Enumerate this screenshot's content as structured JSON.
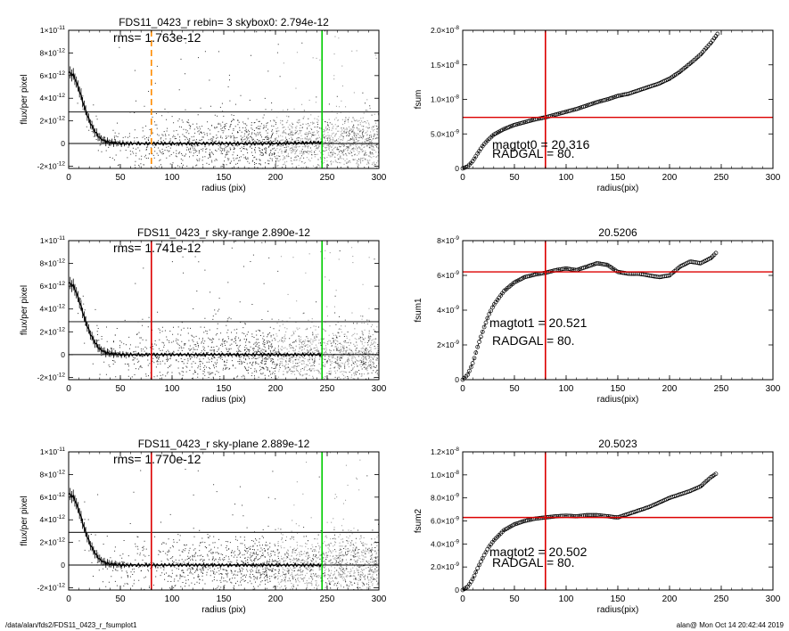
{
  "footer": {
    "path": "/data/alan/fds2/FDS11_0423_r_fsumplot1",
    "stamp": "alan@  Mon Oct 14 20:42:44 2019"
  },
  "chart_data": [
    {
      "id": "p1",
      "type": "scatter",
      "title": "FDS11_0423_r rebin= 3    skybox0:  2.794e-12",
      "xlabel": "radius (pix)",
      "ylabel": "flux/per pixel",
      "xlim": [
        0,
        300
      ],
      "ylim": [
        -2.2e-12,
        1e-11
      ],
      "xticks": [
        0,
        50,
        100,
        150,
        200,
        250,
        300
      ],
      "xticklabels": [
        "0",
        "50",
        "100",
        "150",
        "200",
        "250",
        "300"
      ],
      "yticks": [
        -2e-12,
        0,
        2e-12,
        4e-12,
        6e-12,
        8e-12,
        1e-11
      ],
      "yticklabels": [
        [
          "-2×10",
          "-12"
        ],
        [
          "0",
          ""
        ],
        [
          "2×10",
          "-12"
        ],
        [
          "4×10",
          "-12"
        ],
        [
          "6×10",
          "-12"
        ],
        [
          "8×10",
          "-12"
        ],
        [
          "1×10",
          "-11"
        ]
      ],
      "annotation": "rms= 1.763e-12",
      "hline": 2.794e-12,
      "zeroline": 0,
      "vlines": [
        {
          "x": 80,
          "color": "#ff8c00",
          "style": "dashed"
        },
        {
          "x": 245,
          "color": "#00cc00",
          "style": "solid"
        }
      ],
      "scatter_points": 2000,
      "profile": {
        "x": [
          0,
          5,
          10,
          15,
          20,
          25,
          30,
          35,
          40,
          45,
          50,
          60,
          80,
          100,
          150,
          200,
          245
        ],
        "y": [
          6.3e-12,
          6e-12,
          4.8e-12,
          3.3e-12,
          2e-12,
          1.1e-12,
          5e-13,
          2e-13,
          1e-13,
          5e-14,
          0.0,
          0.0,
          0.0,
          0.0,
          0.0,
          0.0,
          1e-13
        ]
      }
    },
    {
      "id": "p2",
      "type": "line",
      "title": "",
      "xlabel": "radius(pix)",
      "ylabel": "fsum",
      "xlim": [
        0,
        300
      ],
      "ylim": [
        0,
        2e-08
      ],
      "xticks": [
        0,
        50,
        100,
        150,
        200,
        250,
        300
      ],
      "xticklabels": [
        "0",
        "50",
        "100",
        "150",
        "200",
        "250",
        "300"
      ],
      "yticks": [
        0,
        5e-09,
        1e-08,
        1.5e-08,
        2e-08
      ],
      "yticklabels": [
        [
          "0",
          ""
        ],
        [
          "5.0×10",
          "-9"
        ],
        [
          "1.0×10",
          "-8"
        ],
        [
          "1.5×10",
          "-8"
        ],
        [
          "2.0×10",
          "-8"
        ]
      ],
      "annotation_lines": [
        "magtot0 =  20.316",
        "RADGAL =      80."
      ],
      "vline": 80,
      "hline": 7.4e-09,
      "series": {
        "x": [
          0,
          5,
          10,
          15,
          20,
          25,
          30,
          40,
          50,
          60,
          70,
          80,
          90,
          100,
          110,
          120,
          130,
          140,
          150,
          160,
          170,
          180,
          190,
          200,
          210,
          220,
          230,
          240,
          247
        ],
        "y": [
          0,
          3e-10,
          1.1e-09,
          2.3e-09,
          3.4e-09,
          4.2e-09,
          4.9e-09,
          5.7e-09,
          6.3e-09,
          6.7e-09,
          7.1e-09,
          7.4e-09,
          7.8e-09,
          8.2e-09,
          8.6e-09,
          9.1e-09,
          9.6e-09,
          1e-08,
          1.05e-08,
          1.08e-08,
          1.13e-08,
          1.18e-08,
          1.23e-08,
          1.3e-08,
          1.4e-08,
          1.52e-08,
          1.65e-08,
          1.82e-08,
          1.96e-08
        ]
      }
    },
    {
      "id": "p3",
      "type": "scatter",
      "title": "FDS11_0423_r sky-range  2.890e-12",
      "xlabel": "radius (pix)",
      "ylabel": "flux/per pixel",
      "xlim": [
        0,
        300
      ],
      "ylim": [
        -2.2e-12,
        1e-11
      ],
      "xticks": [
        0,
        50,
        100,
        150,
        200,
        250,
        300
      ],
      "xticklabels": [
        "0",
        "50",
        "100",
        "150",
        "200",
        "250",
        "300"
      ],
      "yticks": [
        -2e-12,
        0,
        2e-12,
        4e-12,
        6e-12,
        8e-12,
        1e-11
      ],
      "yticklabels": [
        [
          "-2×10",
          "-12"
        ],
        [
          "0",
          ""
        ],
        [
          "2×10",
          "-12"
        ],
        [
          "4×10",
          "-12"
        ],
        [
          "6×10",
          "-12"
        ],
        [
          "8×10",
          "-12"
        ],
        [
          "1×10",
          "-11"
        ]
      ],
      "annotation": "rms= 1.741e-12",
      "hline": 2.89e-12,
      "zeroline": 0,
      "vlines": [
        {
          "x": 80,
          "color": "#dd0000",
          "style": "solid"
        },
        {
          "x": 245,
          "color": "#00cc00",
          "style": "solid"
        }
      ],
      "scatter_points": 2000,
      "profile": {
        "x": [
          0,
          5,
          10,
          15,
          20,
          25,
          30,
          35,
          40,
          45,
          50,
          60,
          80,
          100,
          150,
          200,
          245
        ],
        "y": [
          6.3e-12,
          6e-12,
          4.8e-12,
          3.3e-12,
          2e-12,
          1.1e-12,
          5e-13,
          2e-13,
          1e-13,
          5e-14,
          0.0,
          0.0,
          0.0,
          0.0,
          0.0,
          0.0,
          0.0
        ]
      }
    },
    {
      "id": "p4",
      "type": "line",
      "title": "20.5206",
      "xlabel": "radius(pix)",
      "ylabel": "fsum1",
      "xlim": [
        0,
        300
      ],
      "ylim": [
        0,
        8e-09
      ],
      "xticks": [
        0,
        50,
        100,
        150,
        200,
        250,
        300
      ],
      "xticklabels": [
        "0",
        "50",
        "100",
        "150",
        "200",
        "250",
        "300"
      ],
      "yticks": [
        0,
        2e-09,
        4e-09,
        6e-09,
        8e-09
      ],
      "yticklabels": [
        [
          "0",
          ""
        ],
        [
          "2×10",
          "-9"
        ],
        [
          "4×10",
          "-9"
        ],
        [
          "6×10",
          "-9"
        ],
        [
          "8×10",
          "-9"
        ]
      ],
      "annotation_lines": [
        "magtot1 =  20.521",
        "RADGAL =      80."
      ],
      "vline": 80,
      "hline": 6.2e-09,
      "series": {
        "x": [
          0,
          5,
          10,
          15,
          20,
          25,
          30,
          40,
          50,
          60,
          70,
          80,
          90,
          100,
          110,
          120,
          130,
          140,
          150,
          160,
          170,
          180,
          190,
          200,
          210,
          220,
          230,
          240,
          245
        ],
        "y": [
          0,
          3e-10,
          1e-09,
          2e-09,
          2.9e-09,
          3.7e-09,
          4.3e-09,
          5.1e-09,
          5.6e-09,
          5.9e-09,
          6.05e-09,
          6.15e-09,
          6.3e-09,
          6.4e-09,
          6.3e-09,
          6.5e-09,
          6.7e-09,
          6.6e-09,
          6.2e-09,
          6.1e-09,
          6.1e-09,
          6e-09,
          5.9e-09,
          6e-09,
          6.5e-09,
          6.8e-09,
          6.7e-09,
          7e-09,
          7.3e-09
        ]
      }
    },
    {
      "id": "p5",
      "type": "scatter",
      "title": "FDS11_0423_r sky-plane  2.889e-12",
      "xlabel": "radius (pix)",
      "ylabel": "flux/per pixel",
      "xlim": [
        0,
        300
      ],
      "ylim": [
        -2.2e-12,
        1e-11
      ],
      "xticks": [
        0,
        50,
        100,
        150,
        200,
        250,
        300
      ],
      "xticklabels": [
        "0",
        "50",
        "100",
        "150",
        "200",
        "250",
        "300"
      ],
      "yticks": [
        -2e-12,
        0,
        2e-12,
        4e-12,
        6e-12,
        8e-12,
        1e-11
      ],
      "yticklabels": [
        [
          "-2×10",
          "-12"
        ],
        [
          "0",
          ""
        ],
        [
          "2×10",
          "-12"
        ],
        [
          "4×10",
          "-12"
        ],
        [
          "6×10",
          "-12"
        ],
        [
          "8×10",
          "-12"
        ],
        [
          "1×10",
          "-11"
        ]
      ],
      "annotation": "rms= 1.770e-12",
      "hline": 2.889e-12,
      "zeroline": 0,
      "vlines": [
        {
          "x": 80,
          "color": "#dd0000",
          "style": "solid"
        },
        {
          "x": 245,
          "color": "#00cc00",
          "style": "solid"
        }
      ],
      "scatter_points": 2000,
      "profile": {
        "x": [
          0,
          5,
          10,
          15,
          20,
          25,
          30,
          35,
          40,
          45,
          50,
          60,
          80,
          100,
          150,
          200,
          245
        ],
        "y": [
          6.3e-12,
          6e-12,
          4.8e-12,
          3.3e-12,
          2e-12,
          1.1e-12,
          5e-13,
          2e-13,
          1e-13,
          5e-14,
          0.0,
          0.0,
          0.0,
          0.0,
          0.0,
          0.0,
          0.0
        ]
      }
    },
    {
      "id": "p6",
      "type": "line",
      "title": "20.5023",
      "xlabel": "radius(pix)",
      "ylabel": "fsum2",
      "xlim": [
        0,
        300
      ],
      "ylim": [
        0,
        1.2e-08
      ],
      "xticks": [
        0,
        50,
        100,
        150,
        200,
        250,
        300
      ],
      "xticklabels": [
        "0",
        "50",
        "100",
        "150",
        "200",
        "250",
        "300"
      ],
      "yticks": [
        0,
        2e-09,
        4e-09,
        6e-09,
        8e-09,
        1e-08,
        1.2e-08
      ],
      "yticklabels": [
        [
          "0",
          ""
        ],
        [
          "2.0×10",
          "-9"
        ],
        [
          "4.0×10",
          "-9"
        ],
        [
          "6.0×10",
          "-9"
        ],
        [
          "8.0×10",
          "-9"
        ],
        [
          "1.0×10",
          "-8"
        ],
        [
          "1.2×10",
          "-8"
        ]
      ],
      "annotation_lines": [
        "magtot2 =  20.502",
        "RADGAL =      80."
      ],
      "vline": 80,
      "hline": 6.3e-09,
      "series": {
        "x": [
          0,
          5,
          10,
          15,
          20,
          25,
          30,
          40,
          50,
          60,
          70,
          80,
          90,
          100,
          110,
          120,
          130,
          140,
          150,
          160,
          170,
          180,
          190,
          200,
          210,
          220,
          230,
          240,
          245
        ],
        "y": [
          0,
          3e-10,
          1e-09,
          2e-09,
          2.9e-09,
          3.7e-09,
          4.3e-09,
          5.2e-09,
          5.7e-09,
          6e-09,
          6.2e-09,
          6.3e-09,
          6.4e-09,
          6.45e-09,
          6.4e-09,
          6.5e-09,
          6.5e-09,
          6.4e-09,
          6.3e-09,
          6.6e-09,
          6.9e-09,
          7.2e-09,
          7.6e-09,
          8e-09,
          8.3e-09,
          8.6e-09,
          9e-09,
          9.8e-09,
          1.01e-08
        ]
      }
    }
  ]
}
